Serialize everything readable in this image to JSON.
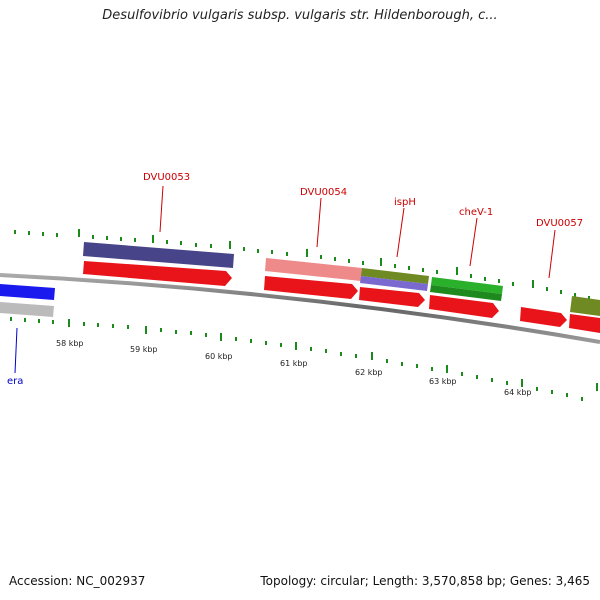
{
  "header": {
    "title": "Desulfovibrio vulgaris subsp. vulgaris str. Hildenborough, c..."
  },
  "footer": {
    "accession": "Accession: NC_002937",
    "summary": "Topology: circular; Length: 3,570,858 bp; Genes: 3,465"
  },
  "scale_ticks": [
    "58 kbp",
    "59 kbp",
    "60 kbp",
    "61 kbp",
    "62 kbp",
    "63 kbp",
    "64 kbp"
  ],
  "gene_labels": [
    {
      "name": "DVU0053",
      "color": "#cc0000"
    },
    {
      "name": "DVU0054",
      "color": "#cc0000"
    },
    {
      "name": "ispH",
      "color": "#cc0000"
    },
    {
      "name": "cheV-1",
      "color": "#cc0000"
    },
    {
      "name": "DVU0057",
      "color": "#cc0000"
    },
    {
      "name": "era",
      "color": "#0000cc"
    }
  ],
  "colors": {
    "backbone": "#7a7a7a",
    "tick": "#1a8a1a",
    "cds": "#e8141a",
    "feature_blue": "#1a1aee",
    "feature_gray": "#bbbbbb",
    "feature_purple": "#48448a",
    "feature_pink": "#ee8a8a",
    "feature_olive": "#6f8a22",
    "feature_lavender": "#7a6ad0",
    "feature_green": "#2ab02a"
  }
}
